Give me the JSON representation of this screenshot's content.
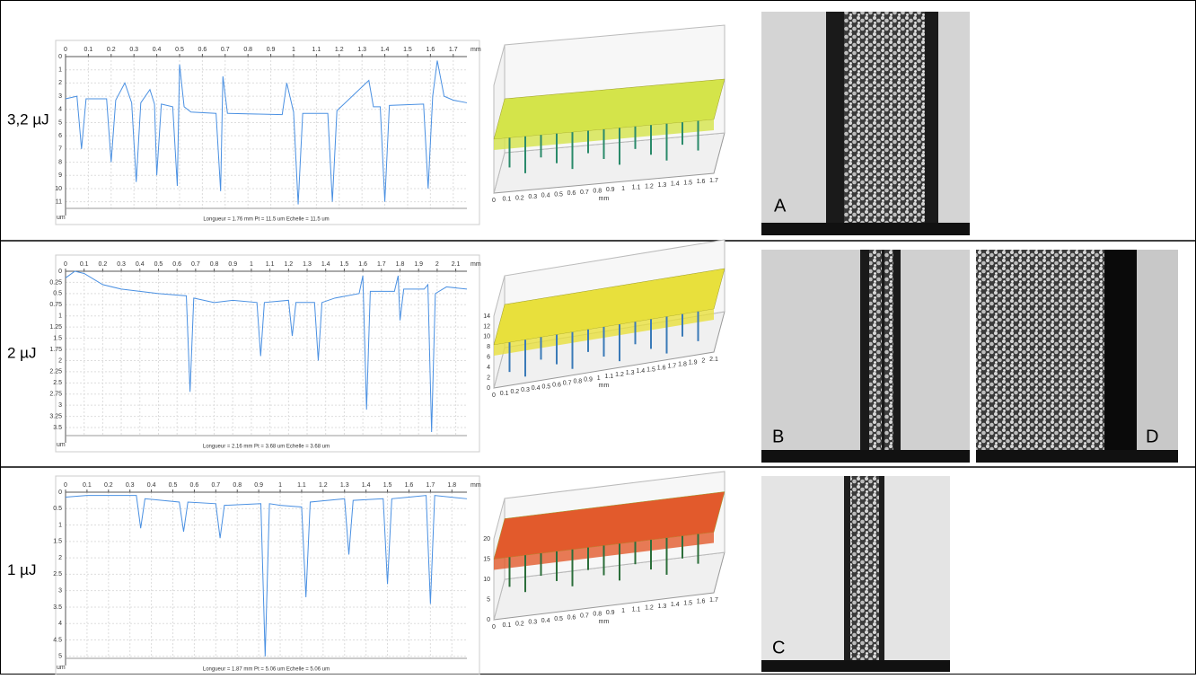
{
  "rows": [
    {
      "label": "3,2 µJ",
      "profile": {
        "type": "line",
        "x_unit": "mm",
        "y_unit": "um",
        "y_inverted": true,
        "grid": true,
        "color": "#4a90e2",
        "caption": "Longueur = 1.76 mm  Pt = 11.5 um  Echelle = 11.5 um",
        "xlim": [
          0,
          1.76
        ],
        "xticks": [
          0,
          0.1,
          0.2,
          0.3,
          0.4,
          0.5,
          0.6,
          0.7,
          0.8,
          0.9,
          1,
          1.1,
          1.2,
          1.3,
          1.4,
          1.5,
          1.6,
          1.7
        ],
        "ylim": [
          0,
          11.5
        ],
        "yticks": [
          0,
          1,
          2,
          3,
          4,
          5,
          6,
          7,
          8,
          9,
          10,
          11
        ],
        "x": [
          0,
          0.05,
          0.07,
          0.09,
          0.18,
          0.2,
          0.22,
          0.26,
          0.29,
          0.31,
          0.33,
          0.37,
          0.39,
          0.4,
          0.42,
          0.47,
          0.49,
          0.5,
          0.52,
          0.55,
          0.66,
          0.68,
          0.69,
          0.71,
          0.95,
          0.97,
          1.0,
          1.02,
          1.04,
          1.15,
          1.17,
          1.19,
          1.33,
          1.35,
          1.38,
          1.4,
          1.42,
          1.57,
          1.59,
          1.61,
          1.63,
          1.66,
          1.7,
          1.76
        ],
        "values": [
          3.2,
          3,
          7,
          3.2,
          3.2,
          8,
          3.3,
          2,
          3.5,
          9.5,
          3.5,
          2.5,
          3.6,
          9,
          3.6,
          3.8,
          9.8,
          0.6,
          3.8,
          4.2,
          4.3,
          10.2,
          1.5,
          4.3,
          4.4,
          2,
          4.2,
          11.2,
          4.3,
          4.3,
          11,
          4.1,
          1.8,
          3.8,
          3.8,
          11,
          3.7,
          3.6,
          10,
          3,
          0.3,
          3,
          3.3,
          3.5
        ]
      },
      "surface": {
        "unit": "mm",
        "xticks": [
          0,
          0.1,
          0.2,
          0.3,
          0.4,
          0.5,
          0.6,
          0.7,
          0.8,
          0.9,
          1,
          1.1,
          1.2,
          1.3,
          1.4,
          1.5,
          1.6,
          1.7
        ],
        "zticks": []
      },
      "sem": [
        "A"
      ]
    },
    {
      "label": "2 µJ",
      "profile": {
        "type": "line",
        "x_unit": "mm",
        "y_unit": "um",
        "y_inverted": true,
        "grid": true,
        "color": "#4a90e2",
        "caption": "Longueur = 2.16 mm  Pt = 3.68 um  Echelle = 3.68 um",
        "xlim": [
          0,
          2.16
        ],
        "xticks": [
          0,
          0.1,
          0.2,
          0.3,
          0.4,
          0.5,
          0.6,
          0.7,
          0.8,
          0.9,
          1,
          1.1,
          1.2,
          1.3,
          1.4,
          1.5,
          1.6,
          1.7,
          1.8,
          1.9,
          2,
          2.1
        ],
        "ylim": [
          0,
          3.68
        ],
        "yticks": [
          0,
          0.25,
          0.5,
          0.75,
          1,
          1.25,
          1.5,
          1.75,
          2,
          2.25,
          2.5,
          2.75,
          3,
          3.25,
          3.5
        ],
        "x": [
          0,
          0.05,
          0.1,
          0.2,
          0.3,
          0.5,
          0.65,
          0.67,
          0.69,
          0.8,
          0.9,
          1.03,
          1.05,
          1.07,
          1.2,
          1.22,
          1.24,
          1.34,
          1.36,
          1.38,
          1.45,
          1.58,
          1.6,
          1.62,
          1.64,
          1.77,
          1.79,
          1.8,
          1.82,
          1.93,
          1.95,
          1.97,
          1.99,
          2.05,
          2.16
        ],
        "values": [
          0.15,
          0,
          0.05,
          0.3,
          0.4,
          0.5,
          0.55,
          2.7,
          0.6,
          0.7,
          0.65,
          0.7,
          1.9,
          0.7,
          0.65,
          1.45,
          0.7,
          0.7,
          2,
          0.7,
          0.6,
          0.5,
          0.1,
          3.1,
          0.45,
          0.45,
          0.1,
          1.1,
          0.4,
          0.4,
          0.3,
          3.6,
          0.5,
          0.35,
          0.4
        ]
      },
      "surface": {
        "unit": "mm",
        "xticks": [
          0,
          0.1,
          0.2,
          0.3,
          0.4,
          0.5,
          0.6,
          0.7,
          0.8,
          0.9,
          1,
          1.1,
          1.2,
          1.3,
          1.4,
          1.5,
          1.6,
          1.7,
          1.8,
          1.9,
          2,
          2.1
        ],
        "zticks": [
          0,
          2,
          4,
          6,
          8,
          10,
          12,
          14
        ]
      },
      "sem": [
        "B",
        "D"
      ]
    },
    {
      "label": "1 µJ",
      "profile": {
        "type": "line",
        "x_unit": "mm",
        "y_unit": "um",
        "y_inverted": true,
        "grid": true,
        "color": "#4a90e2",
        "caption": "Longueur = 1.87 mm  Pt = 5.06 um  Echelle = 5.06 um",
        "xlim": [
          0,
          1.87
        ],
        "xticks": [
          0,
          0.1,
          0.2,
          0.3,
          0.4,
          0.5,
          0.6,
          0.7,
          0.8,
          0.9,
          1,
          1.1,
          1.2,
          1.3,
          1.4,
          1.5,
          1.6,
          1.7,
          1.8
        ],
        "ylim": [
          0,
          5.06
        ],
        "yticks": [
          0,
          0.5,
          1,
          1.5,
          2,
          2.5,
          3,
          3.5,
          4,
          4.5,
          5
        ],
        "x": [
          0,
          0.1,
          0.2,
          0.33,
          0.35,
          0.37,
          0.53,
          0.55,
          0.57,
          0.7,
          0.72,
          0.74,
          0.91,
          0.93,
          0.95,
          1.0,
          1.1,
          1.12,
          1.14,
          1.3,
          1.32,
          1.34,
          1.48,
          1.5,
          1.52,
          1.6,
          1.68,
          1.7,
          1.72,
          1.87
        ],
        "values": [
          0.15,
          0.1,
          0.1,
          0.1,
          1.1,
          0.2,
          0.3,
          1.2,
          0.3,
          0.35,
          1.4,
          0.4,
          0.35,
          5.0,
          0.35,
          0.4,
          0.45,
          3.2,
          0.3,
          0.2,
          1.9,
          0.25,
          0.2,
          2.8,
          0.2,
          0.15,
          0.1,
          3.4,
          0.1,
          0.2
        ]
      },
      "surface": {
        "unit": "mm",
        "xticks": [
          0,
          0.1,
          0.2,
          0.3,
          0.4,
          0.5,
          0.6,
          0.7,
          0.8,
          0.9,
          1,
          1.1,
          1.2,
          1.3,
          1.4,
          1.5,
          1.6,
          1.7
        ],
        "zticks": [
          0,
          5,
          10,
          15,
          20
        ]
      },
      "sem": [
        "C"
      ]
    }
  ]
}
